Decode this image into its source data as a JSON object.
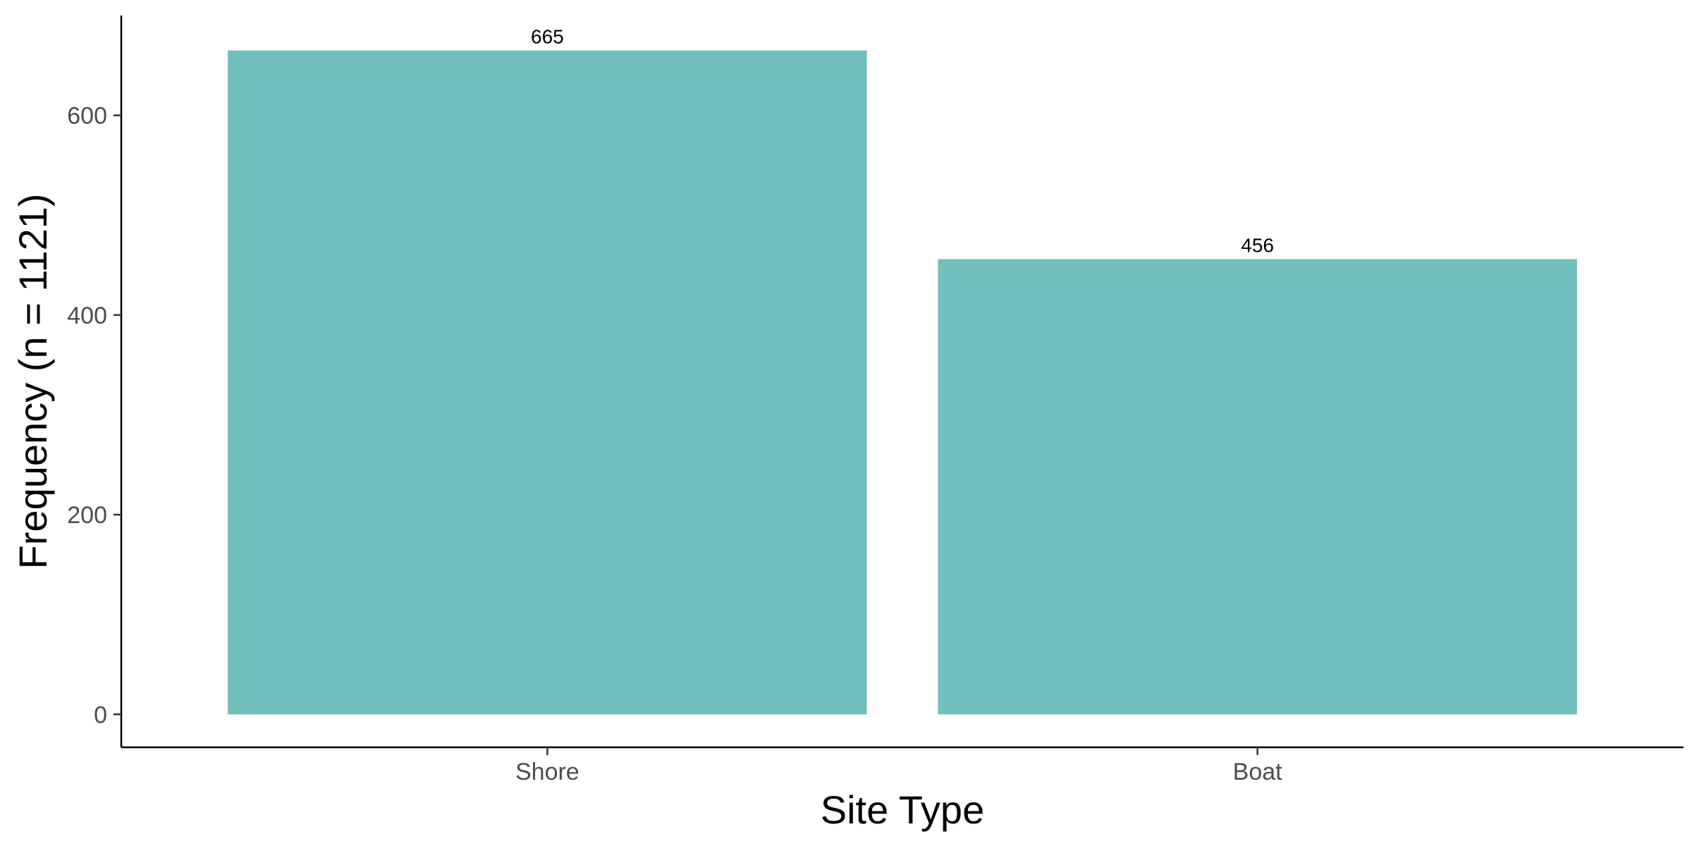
{
  "chart_data": {
    "type": "bar",
    "categories": [
      "Shore",
      "Boat"
    ],
    "values": [
      665,
      456
    ],
    "data_labels": [
      "665",
      "456"
    ],
    "title": "",
    "xlabel": "Site Type",
    "ylabel": "Frequency (n = 1121)",
    "ylim": [
      -33,
      700
    ],
    "yticks": [
      0,
      200,
      400,
      600
    ],
    "ytick_labels": [
      "0",
      "200",
      "400",
      "600"
    ],
    "grid": false,
    "legend": "none",
    "bar_color": "#72c0bd"
  }
}
